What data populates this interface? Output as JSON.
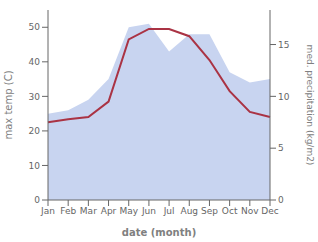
{
  "chart_data": {
    "type": "line",
    "xlabel": "date (month)",
    "ylabel": "max temp (C)",
    "y2label": "med. precipitation (kg/m2)",
    "categories": [
      "Jan",
      "Feb",
      "Mar",
      "Apr",
      "May",
      "Jun",
      "Jul",
      "Aug",
      "Sep",
      "Oct",
      "Nov",
      "Dec"
    ],
    "series": [
      {
        "type": "area",
        "color": "#c8d4f0",
        "values": [
          25,
          26,
          29,
          35,
          50,
          51,
          43,
          48,
          48,
          37,
          34,
          35
        ]
      },
      {
        "type": "line",
        "color": "#aa3344",
        "marker": "none",
        "axis": "y2",
        "values": [
          7.5,
          7.8,
          8.0,
          9.5,
          15.5,
          16.5,
          16.5,
          15.8,
          13.5,
          10.5,
          8.5,
          8.0
        ]
      }
    ],
    "ylim": [
      0,
      55
    ],
    "yticks": [
      0,
      10,
      20,
      30,
      40,
      50
    ],
    "y2lim": [
      0,
      18.33
    ],
    "y2ticks": [
      0,
      5,
      10,
      15
    ],
    "grid": false
  }
}
